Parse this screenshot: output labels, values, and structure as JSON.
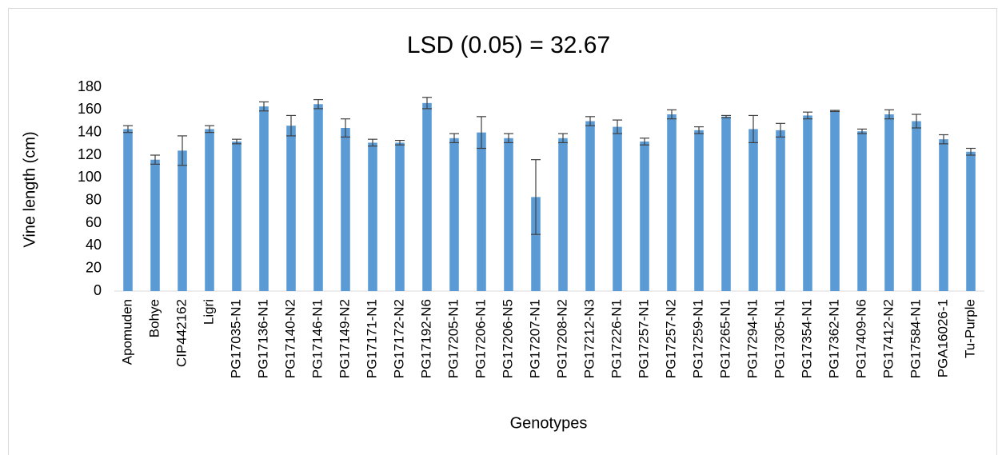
{
  "chart_data": {
    "type": "bar",
    "title": "LSD (0.05) = 32.67",
    "y_label": "Vine length (cm)",
    "x_label": "Genotypes",
    "categories": [
      "Apomuden",
      "Bohye",
      "CIP442162",
      "Ligri",
      "PG17035-N1",
      "PG17136-N1",
      "PG17140-N2",
      "PG17146-N1",
      "PG17149-N2",
      "PG17171-N1",
      "PG17172-N2",
      "PG17192-N6",
      "PG17205-N1",
      "PG17206-N1",
      "PG17206-N5",
      "PG17207-N1",
      "PG17208-N2",
      "PG17212-N3",
      "PG17226-N1",
      "PG17257-N1",
      "PG17257-N2",
      "PG17259-N1",
      "PG17265-N1",
      "PG17294-N1",
      "PG17305-N1",
      "PG17354-N1",
      "PG17362-N1",
      "PG17409-N6",
      "PG17412-N2",
      "PG17584-N1",
      "PGA16026-1",
      "Tu-Purple"
    ],
    "values": [
      143,
      116,
      124,
      143,
      132,
      163,
      146,
      165,
      144,
      131,
      131,
      166,
      135,
      140,
      135,
      83,
      135,
      150,
      145,
      132,
      156,
      142,
      154,
      143,
      142,
      155,
      159,
      141,
      156,
      150,
      134,
      123
    ],
    "errors": [
      3,
      4,
      13,
      3,
      2,
      4,
      9,
      4,
      8,
      3,
      2,
      5,
      4,
      14,
      4,
      33,
      4,
      4,
      6,
      3,
      4,
      3,
      1,
      12,
      6,
      3,
      0.5,
      2,
      4,
      6,
      4,
      3
    ],
    "color": "#5b9bd5",
    "ylim": [
      0,
      180
    ],
    "yticks": [
      0,
      20,
      40,
      60,
      80,
      100,
      120,
      140,
      160,
      180
    ],
    "grid": false
  }
}
